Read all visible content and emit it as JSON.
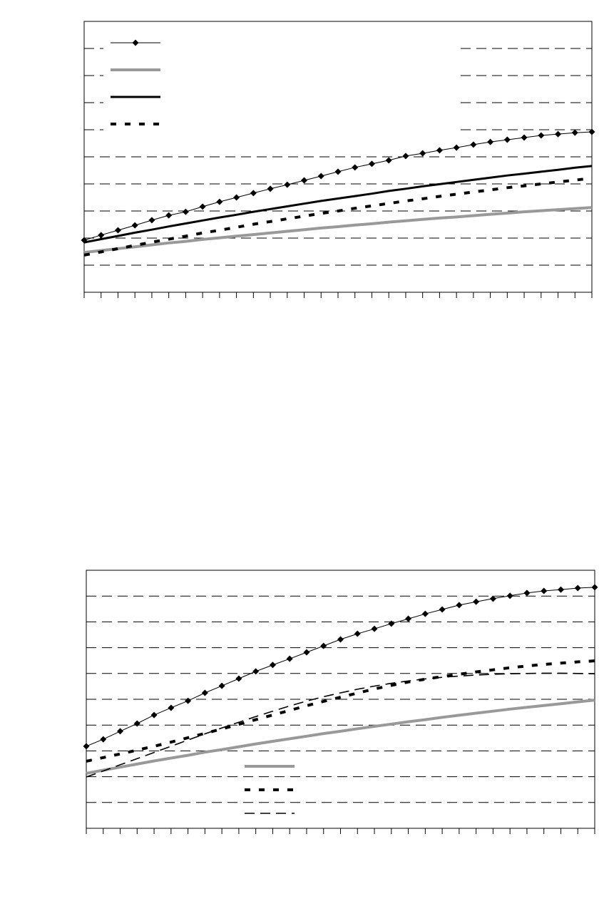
{
  "chart_data": [
    {
      "type": "line",
      "ylim": [
        0,
        10
      ],
      "yticks": [
        1,
        2,
        3,
        4,
        5,
        6,
        7,
        8,
        9
      ],
      "grid": true,
      "legend": "top-left",
      "series": [
        {
          "color": "#000000",
          "line_style": "solid",
          "marker": "diamond",
          "values": [
            1.92,
            2.11,
            2.29,
            2.47,
            2.66,
            2.84,
            2.97,
            3.16,
            3.34,
            3.5,
            3.66,
            3.82,
            3.97,
            4.13,
            4.29,
            4.45,
            4.61,
            4.74,
            4.87,
            5.03,
            5.13,
            5.24,
            5.34,
            5.45,
            5.55,
            5.63,
            5.71,
            5.79,
            5.84,
            5.89,
            5.92
          ]
        },
        {
          "color": "#999999",
          "line_style": "solid",
          "values": [
            1.47,
            1.54,
            1.61,
            1.68,
            1.75,
            1.82,
            1.88,
            1.95,
            2.01,
            2.07,
            2.13,
            2.19,
            2.25,
            2.31,
            2.37,
            2.42,
            2.48,
            2.53,
            2.59,
            2.64,
            2.69,
            2.74,
            2.78,
            2.83,
            2.88,
            2.92,
            2.97,
            3.01,
            3.05,
            3.09,
            3.13
          ]
        },
        {
          "color": "#000000",
          "line_style": "solid",
          "values": [
            1.84,
            1.96,
            2.08,
            2.2,
            2.31,
            2.43,
            2.54,
            2.65,
            2.76,
            2.86,
            2.97,
            3.07,
            3.17,
            3.27,
            3.37,
            3.46,
            3.55,
            3.64,
            3.74,
            3.82,
            3.91,
            3.99,
            4.07,
            4.15,
            4.23,
            4.31,
            4.38,
            4.45,
            4.52,
            4.6,
            4.66
          ]
        },
        {
          "color": "#000000",
          "line_style": "dotted",
          "values": [
            1.37,
            1.49,
            1.61,
            1.73,
            1.85,
            1.96,
            2.07,
            2.19,
            2.29,
            2.4,
            2.51,
            2.61,
            2.71,
            2.81,
            2.91,
            3.0,
            3.1,
            3.19,
            3.28,
            3.37,
            3.45,
            3.54,
            3.62,
            3.7,
            3.78,
            3.86,
            3.93,
            4.0,
            4.07,
            4.14,
            4.21
          ]
        }
      ]
    },
    {
      "type": "line",
      "ylim": [
        0,
        10
      ],
      "yticks": [
        1,
        2,
        3,
        4,
        5,
        6,
        7,
        8,
        9
      ],
      "grid": true,
      "legend": "bottom-center",
      "series": [
        {
          "color": "#000000",
          "line_style": "solid",
          "marker": "diamond",
          "in_legend": false,
          "values": [
            3.18,
            3.45,
            3.76,
            4.06,
            4.39,
            4.67,
            4.94,
            5.25,
            5.52,
            5.8,
            6.08,
            6.33,
            6.57,
            6.82,
            7.07,
            7.32,
            7.54,
            7.73,
            7.93,
            8.12,
            8.31,
            8.48,
            8.65,
            8.78,
            8.9,
            9.01,
            9.12,
            9.2,
            9.25,
            9.31,
            9.34
          ]
        },
        {
          "color": "#999999",
          "line_style": "solid",
          "values": [
            2.13,
            2.25,
            2.37,
            2.49,
            2.61,
            2.72,
            2.83,
            2.95,
            3.05,
            3.16,
            3.27,
            3.37,
            3.47,
            3.57,
            3.67,
            3.76,
            3.86,
            3.95,
            4.04,
            4.13,
            4.21,
            4.3,
            4.38,
            4.46,
            4.54,
            4.62,
            4.69,
            4.76,
            4.83,
            4.9,
            4.97
          ]
        },
        {
          "color": "#000000",
          "line_style": "dotted",
          "values": [
            2.6,
            2.74,
            2.88,
            3.03,
            3.18,
            3.34,
            3.51,
            3.68,
            3.85,
            4.03,
            4.21,
            4.39,
            4.57,
            4.75,
            4.92,
            5.08,
            5.24,
            5.4,
            5.54,
            5.67,
            5.78,
            5.88,
            5.97,
            6.06,
            6.14,
            6.22,
            6.29,
            6.35,
            6.4,
            6.45,
            6.49
          ]
        },
        {
          "color": "#000000",
          "line_style": "dashed",
          "values": [
            1.99,
            2.22,
            2.46,
            2.7,
            2.94,
            3.18,
            3.42,
            3.66,
            3.89,
            4.11,
            4.33,
            4.54,
            4.74,
            4.93,
            5.1,
            5.25,
            5.39,
            5.51,
            5.62,
            5.71,
            5.79,
            5.85,
            5.9,
            5.94,
            5.97,
            5.99,
            6.0,
            6.01,
            6.01,
            6.0,
            5.99
          ]
        }
      ]
    }
  ]
}
